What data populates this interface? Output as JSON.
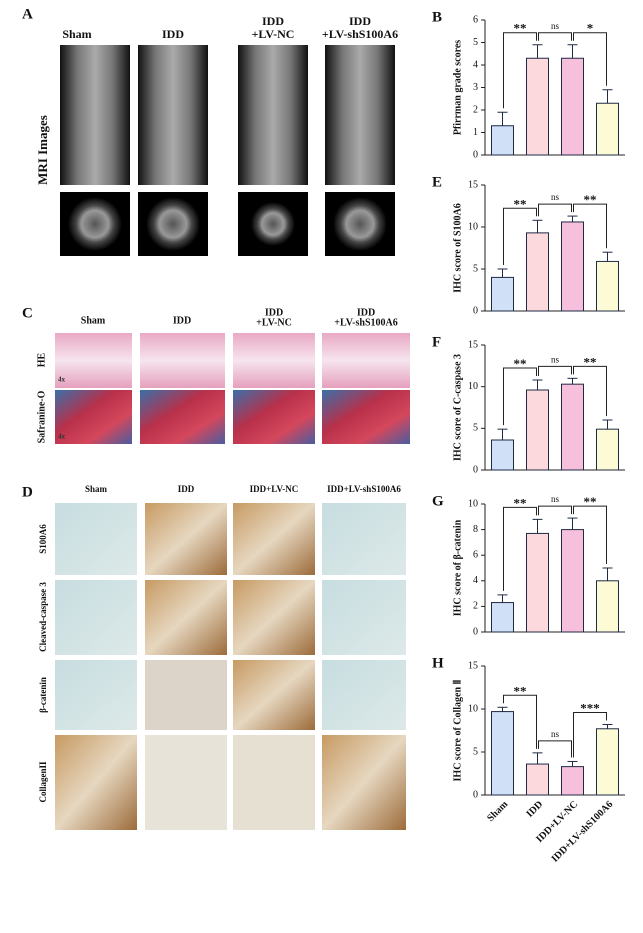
{
  "panel_a": {
    "label": "A",
    "columns": [
      [
        "Sham"
      ],
      [
        "IDD"
      ],
      [
        "IDD",
        "+LV-NC"
      ],
      [
        "IDD",
        "+LV-shS100A6"
      ]
    ],
    "row_label": "MRI Images"
  },
  "panel_c": {
    "label": "C",
    "columns": [
      [
        "Sham"
      ],
      [
        "IDD"
      ],
      [
        "IDD",
        "+LV-NC"
      ],
      [
        "IDD",
        "+LV-shS100A6"
      ]
    ],
    "rows": [
      "HE",
      "Safranine-O"
    ],
    "magnification": [
      "4x",
      "4x"
    ]
  },
  "panel_d": {
    "label": "D",
    "columns": [
      "Sham",
      "IDD",
      "IDD+LV-NC",
      "IDD+LV-shS100A6"
    ],
    "rows": [
      "S100A6",
      "Cleaved-caspase 3",
      "β-catenin",
      "CollagenII"
    ]
  },
  "chart_data": [
    {
      "type": "bar",
      "panel_label": "B",
      "ylabel": "Pfirrman grade scores",
      "categories": [
        null,
        null,
        null,
        null
      ],
      "values": [
        1.3,
        4.3,
        4.3,
        2.3
      ],
      "errors": [
        0.6,
        0.6,
        0.6,
        0.6
      ],
      "colors": [
        "#cfe0f7",
        "#fcd9dc",
        "#f6bfdc",
        "#fdfbd6"
      ],
      "edge_color": "#1f2a44",
      "ylim": [
        0,
        6
      ],
      "yticks": [
        0,
        1,
        2,
        3,
        4,
        5,
        6
      ],
      "annotations": [
        "**",
        "ns",
        "*"
      ]
    },
    {
      "type": "bar",
      "panel_label": "E",
      "ylabel": "IHC score of S100A6",
      "categories": [
        null,
        null,
        null,
        null
      ],
      "values": [
        4,
        9.3,
        10.6,
        5.9
      ],
      "errors": [
        1,
        1.5,
        0.7,
        1.1
      ],
      "colors": [
        "#cfe0f7",
        "#fcd9dc",
        "#f6bfdc",
        "#fdfbd6"
      ],
      "edge_color": "#1f2a44",
      "ylim": [
        0,
        15
      ],
      "yticks": [
        0,
        5,
        10,
        15
      ],
      "annotations": [
        "**",
        "ns",
        "**"
      ]
    },
    {
      "type": "bar",
      "panel_label": "F",
      "ylabel": "IHC score of C-caspase 3",
      "categories": [
        null,
        null,
        null,
        null
      ],
      "values": [
        3.6,
        9.6,
        10.3,
        4.9
      ],
      "errors": [
        1.3,
        1.2,
        0.7,
        1.1
      ],
      "colors": [
        "#cfe0f7",
        "#fcd9dc",
        "#f6bfdc",
        "#fdfbd6"
      ],
      "edge_color": "#1f2a44",
      "ylim": [
        0,
        15
      ],
      "yticks": [
        0,
        5,
        10,
        15
      ],
      "annotations": [
        "**",
        "ns",
        "**"
      ]
    },
    {
      "type": "bar",
      "panel_label": "G",
      "ylabel": "IHC score of β-catenin",
      "categories": [
        null,
        null,
        null,
        null
      ],
      "values": [
        2.3,
        7.7,
        8.0,
        4.0
      ],
      "errors": [
        0.6,
        1.1,
        0.9,
        1.0
      ],
      "colors": [
        "#cfe0f7",
        "#fcd9dc",
        "#f6bfdc",
        "#fdfbd6"
      ],
      "edge_color": "#1f2a44",
      "ylim": [
        0,
        10
      ],
      "yticks": [
        0,
        2,
        4,
        6,
        8,
        10
      ],
      "annotations": [
        "**",
        "ns",
        "**"
      ]
    },
    {
      "type": "bar",
      "panel_label": "H",
      "ylabel": "IHC score of Collagen Ⅱ",
      "categories": [
        "Sham",
        "IDD",
        "IDD+LV-NC",
        "IDD+LV-shS100A6"
      ],
      "values": [
        9.7,
        3.6,
        3.3,
        7.7
      ],
      "errors": [
        0.5,
        1.3,
        0.6,
        0.5
      ],
      "colors": [
        "#cfe0f7",
        "#fcd9dc",
        "#f6bfdc",
        "#fdfbd6"
      ],
      "edge_color": "#1f2a44",
      "ylim": [
        0,
        15
      ],
      "yticks": [
        0,
        5,
        10,
        15
      ],
      "annotations": [
        "**",
        "ns",
        "***"
      ]
    }
  ]
}
